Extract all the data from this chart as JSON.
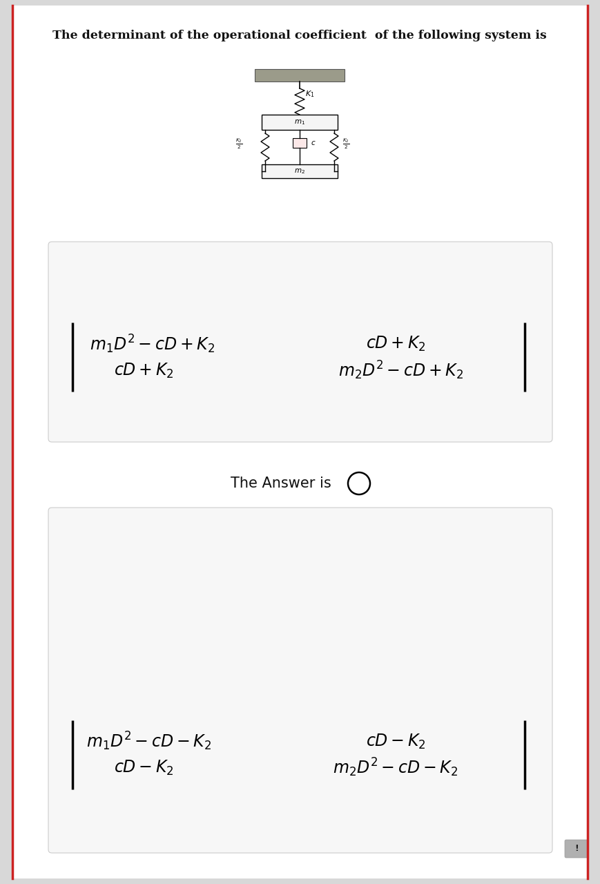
{
  "title": "The determinant of the operational coefficient  of the following system is",
  "title_fontsize": 12.5,
  "bg_color": "#d8d8d8",
  "page_bg": "#ffffff",
  "box_facecolor": "#f7f7f7",
  "box_edgecolor": "#cccccc",
  "math_fontsize": 17,
  "answer_fontsize": 15,
  "answer_text": "The Answer is",
  "det1_row1_left": "$m_1D^2 - cD + K_2$",
  "det1_row1_right": "$cD + K_2$",
  "det1_row2_left": "$cD + K_2$",
  "det1_row2_right": "$m_2D^2 - cD + K_2$",
  "det2_row1_left": "$m_1D^2 - cD - K_2$",
  "det2_row1_right": "$cD - K_2$",
  "det2_row2_left": "$cD - K_2$",
  "det2_row2_right": "$m_2D^2 - cD - K_2$",
  "ceil_color": "#9B9B8A",
  "mass_facecolor": "#f5f5f5",
  "damp_facecolor": "#fce8e8"
}
